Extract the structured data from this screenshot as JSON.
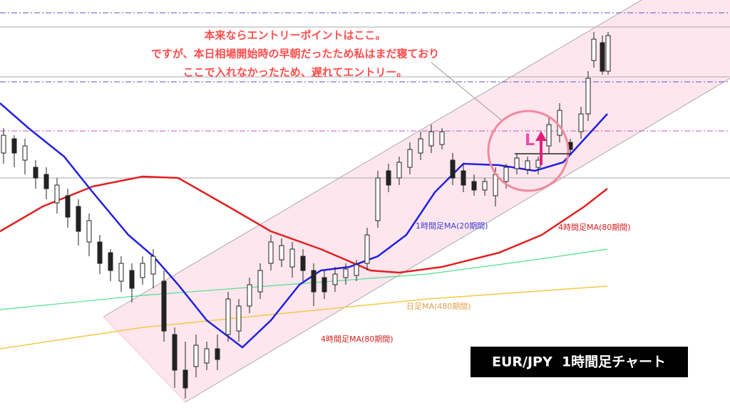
{
  "chart_data": {
    "type": "candlestick",
    "title": "EUR/JPY  1時間足チャート",
    "annotations": [
      "本来ならエントリーポイントはここ。",
      "ですが、本日相場開始時の早朝だったため私はまだ寝ており",
      "ここで入れなかったため、遅れてエントリー。"
    ],
    "entry_label": "L",
    "ma_labels": [
      "1時間足MA(20期間)",
      "4時間足MA(80期間)",
      "日足MA(480期間)",
      "4時間足MA(80期間)"
    ]
  }
}
